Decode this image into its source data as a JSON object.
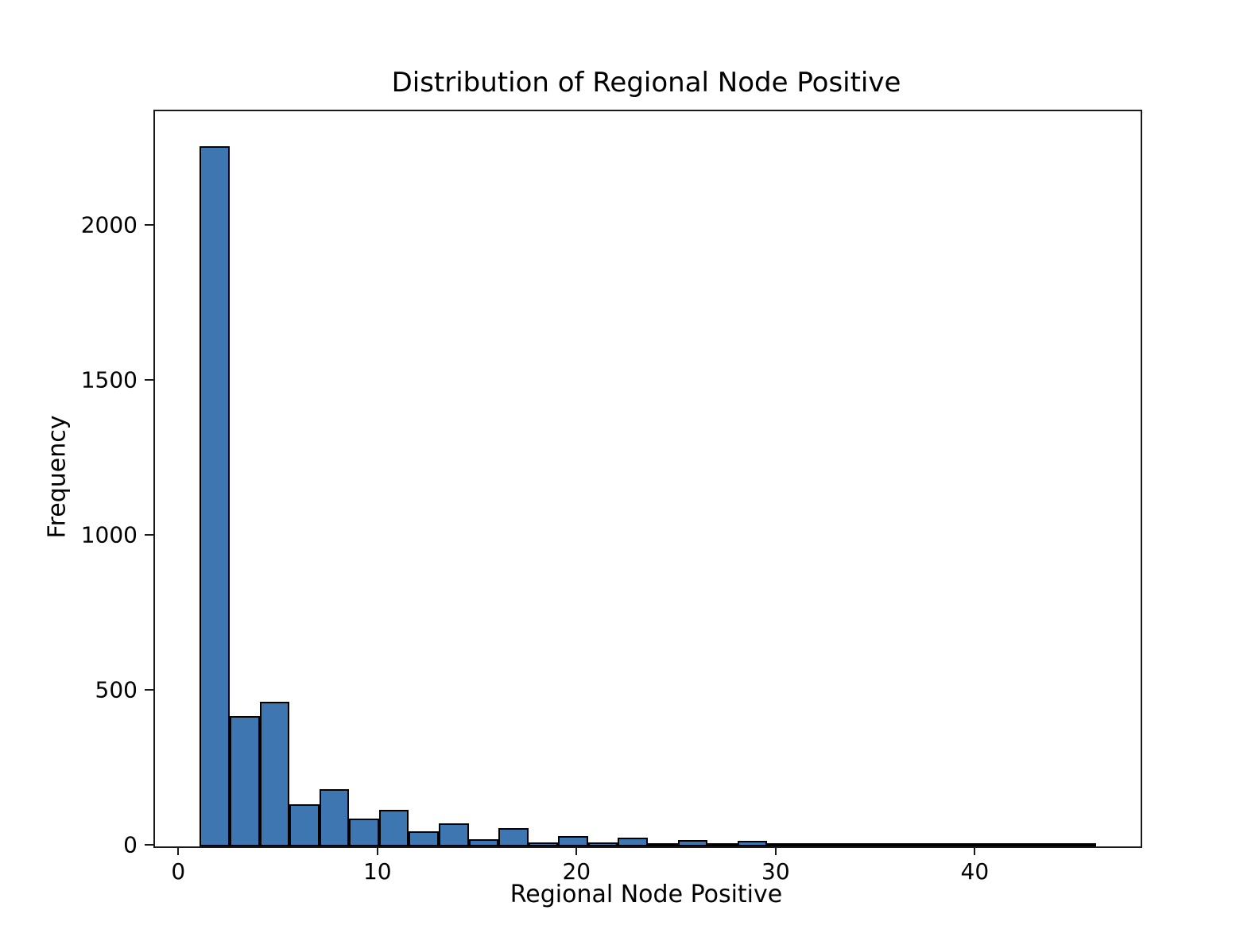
{
  "chart_data": {
    "type": "bar",
    "subtype": "histogram",
    "title": "Distribution of Regional Node Positive",
    "xlabel": "Regional Node Positive",
    "ylabel": "Frequency",
    "bin_start": 1,
    "bin_width": 1.5,
    "bin_count": 30,
    "counts": [
      2260,
      420,
      468,
      137,
      185,
      90,
      117,
      49,
      74,
      23,
      60,
      14,
      33,
      12,
      28,
      9,
      20,
      5,
      19,
      2,
      9,
      2,
      9,
      2,
      2,
      1,
      1,
      1,
      1,
      1
    ],
    "xlim": [
      -1.25,
      48.25
    ],
    "ylim": [
      0,
      2373
    ],
    "xticks": [
      0,
      10,
      20,
      30,
      40
    ],
    "yticks": [
      0,
      500,
      1000,
      1500,
      2000
    ],
    "grid": false,
    "legend": "none",
    "bar_color": "#3d76b0",
    "bar_edge_color": "#000000",
    "background_color": "#ffffff"
  }
}
